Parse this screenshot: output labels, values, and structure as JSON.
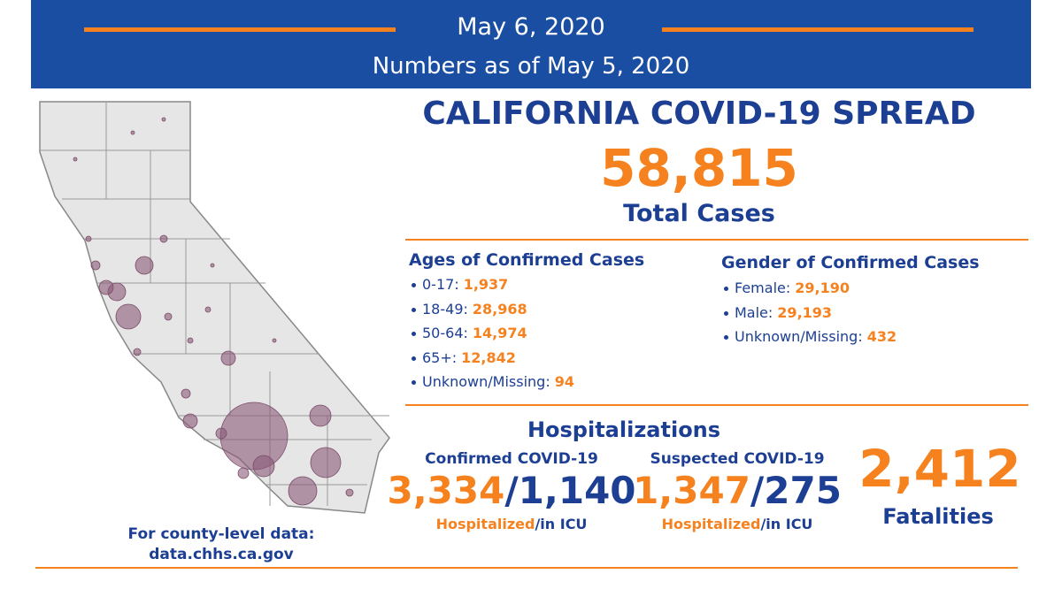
{
  "header": {
    "date": "May 6, 2020",
    "subtitle": "Numbers as of May 5, 2020"
  },
  "spread": {
    "title": "CALIFORNIA COVID-19 SPREAD",
    "total": "58,815",
    "total_label": "Total Cases"
  },
  "ages": {
    "title": "Ages of Confirmed Cases",
    "items": [
      {
        "label": "0-17:",
        "value": "1,937"
      },
      {
        "label": "18-49:",
        "value": "28,968"
      },
      {
        "label": "50-64:",
        "value": "14,974"
      },
      {
        "label": "65+:",
        "value": "12,842"
      },
      {
        "label": "Unknown/Missing:",
        "value": "94"
      }
    ]
  },
  "gender": {
    "title": "Gender of Confirmed Cases",
    "items": [
      {
        "label": "Female:",
        "value": "29,190"
      },
      {
        "label": "Male:",
        "value": "29,193"
      },
      {
        "label": "Unknown/Missing:",
        "value": "432"
      }
    ]
  },
  "hospitalizations": {
    "title": "Hospitalizations",
    "confirmed": {
      "title": "Confirmed COVID-19",
      "hospitalized": "3,334",
      "icu": "/1,140",
      "caption_hospitalized": "Hospitalized",
      "caption_icu": "/in ICU"
    },
    "suspected": {
      "title": "Suspected COVID-19",
      "hospitalized": "1,347",
      "icu": "/275",
      "caption_hospitalized": "Hospitalized",
      "caption_icu": "/in ICU"
    }
  },
  "fatalities": {
    "value": "2,412",
    "label": "Fatalities"
  },
  "footer": {
    "line1": "For county-level data:",
    "line2": "data.chhs.ca.gov"
  }
}
